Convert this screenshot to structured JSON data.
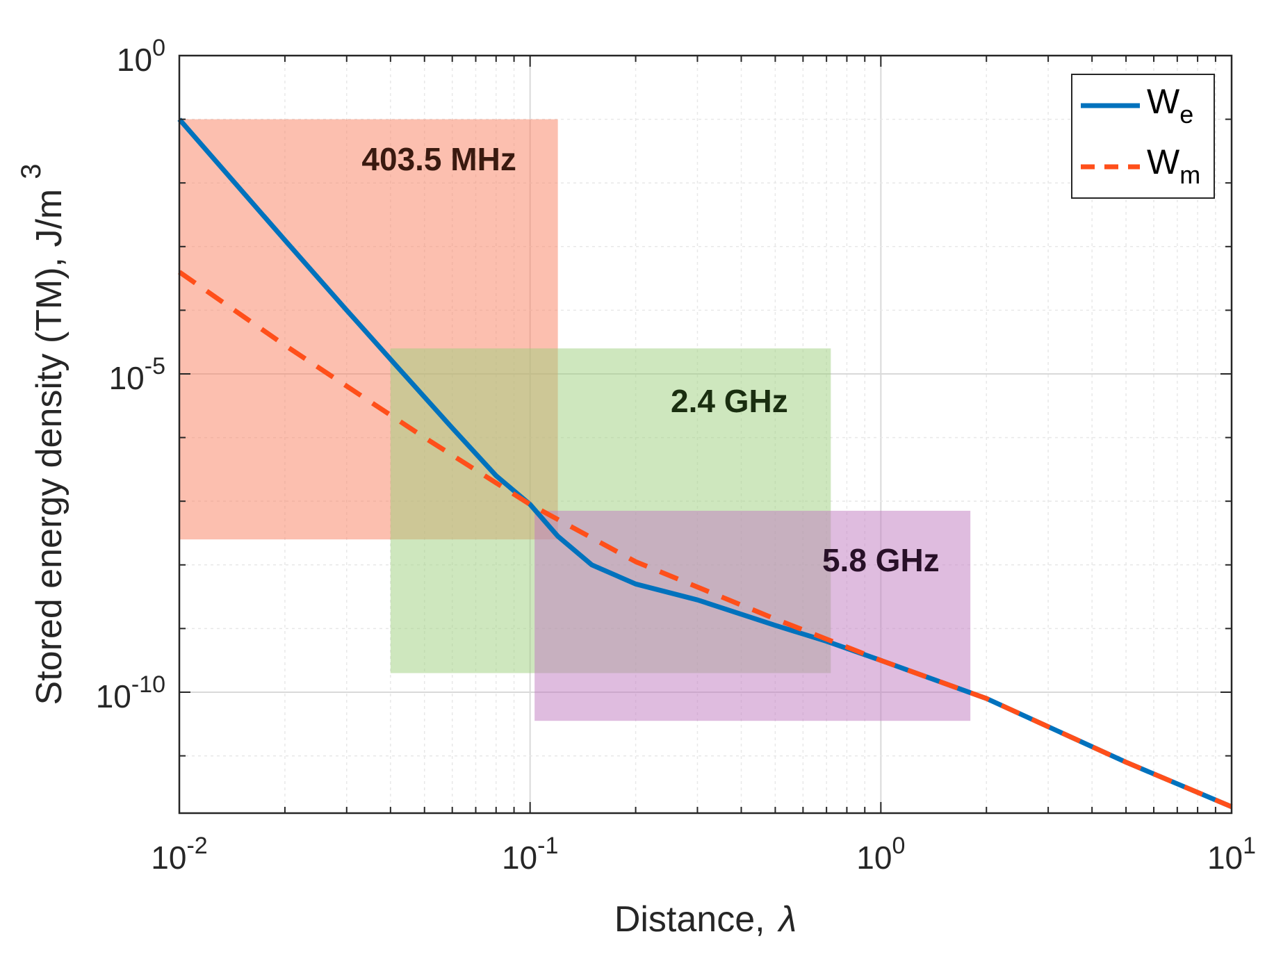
{
  "chart_data": {
    "type": "line",
    "xscale": "log",
    "yscale": "log",
    "xlim": [
      0.01,
      10
    ],
    "ylim_exp": [
      -11.9,
      0
    ],
    "xlabel": "Distance,",
    "xlabel_symbol": "λ",
    "ylabel": "Stored energy density (TM), J/m",
    "ylabel_superscript": "3",
    "x_ticks": [
      {
        "value": 0.01,
        "base": "10",
        "exp": "-2"
      },
      {
        "value": 0.1,
        "base": "10",
        "exp": "-1"
      },
      {
        "value": 1,
        "base": "10",
        "exp": "0"
      },
      {
        "value": 10,
        "base": "10",
        "exp": "1"
      }
    ],
    "y_ticks": [
      {
        "exp_value": 0,
        "base": "10",
        "exp": "0"
      },
      {
        "exp_value": -5,
        "base": "10",
        "exp": "-5"
      },
      {
        "exp_value": -10,
        "base": "10",
        "exp": "-10"
      }
    ],
    "grid": true,
    "legend_position": "top-right",
    "series": [
      {
        "name": "W",
        "subscript": "e",
        "color": "#0072BD",
        "style": "solid",
        "x": [
          0.01,
          0.02,
          0.03,
          0.042,
          0.06,
          0.08,
          0.1,
          0.12,
          0.15,
          0.2,
          0.3,
          0.5,
          0.7,
          1,
          2,
          5,
          10
        ],
        "log10_y": [
          -1.0,
          -2.9,
          -4.0,
          -4.9,
          -5.85,
          -6.6,
          -7.05,
          -7.55,
          -8.0,
          -8.3,
          -8.55,
          -8.95,
          -9.2,
          -9.5,
          -10.1,
          -11.1,
          -11.8
        ]
      },
      {
        "name": "W",
        "subscript": "m",
        "color": "#FF4F1A",
        "style": "dashed",
        "x": [
          0.01,
          0.02,
          0.05,
          0.1,
          0.2,
          0.5,
          1,
          2,
          5,
          10
        ],
        "log10_y": [
          -3.4,
          -4.55,
          -6.0,
          -7.05,
          -7.95,
          -8.85,
          -9.5,
          -10.1,
          -11.1,
          -11.8
        ]
      }
    ],
    "regions": [
      {
        "label": "403.5 MHz",
        "x_range": [
          0.01,
          0.12
        ],
        "log10_y_range": [
          -7.6,
          -1.0
        ],
        "fill": "#FA8060",
        "label_color": "#3A1A10",
        "label_x": 0.055,
        "label_log10_y": -1.8
      },
      {
        "label": "2.4 GHz",
        "x_range": [
          0.04,
          0.72
        ],
        "log10_y_range": [
          -9.7,
          -4.6
        ],
        "fill": "#9DD07E",
        "label_color": "#1A2E10",
        "label_x": 0.37,
        "label_log10_y": -5.6
      },
      {
        "label": "5.8 GHz",
        "x_range": [
          0.103,
          1.8
        ],
        "log10_y_range": [
          -10.45,
          -7.15
        ],
        "fill": "#C07AC0",
        "label_color": "#281028",
        "label_x": 1.0,
        "label_log10_y": -8.1
      }
    ]
  }
}
